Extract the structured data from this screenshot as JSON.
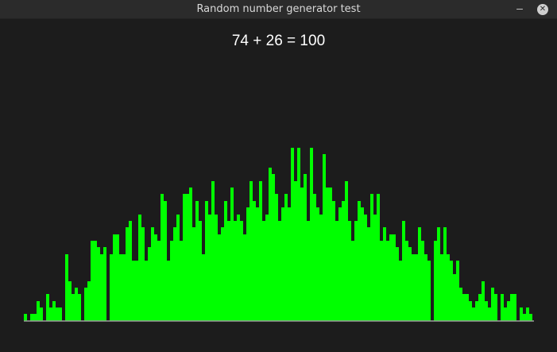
{
  "window": {
    "title": "Random number generator test",
    "minimize_glyph": "–",
    "close_glyph": "✕"
  },
  "equation": "74 + 26 = 100",
  "colors": {
    "bar": "#00ff00",
    "background": "#1c1c1c",
    "baseline": "#9a9a9a"
  },
  "chart_data": {
    "type": "bar",
    "title": "",
    "xlabel": "",
    "ylabel": "",
    "ylim": [
      0,
      250
    ],
    "values": [
      9,
      0,
      9,
      9,
      25,
      17,
      0,
      34,
      17,
      25,
      17,
      17,
      0,
      84,
      50,
      34,
      42,
      34,
      0,
      42,
      50,
      101,
      101,
      93,
      84,
      93,
      0,
      84,
      109,
      109,
      84,
      84,
      118,
      126,
      76,
      76,
      134,
      118,
      76,
      93,
      118,
      109,
      101,
      160,
      151,
      76,
      101,
      118,
      134,
      101,
      160,
      160,
      168,
      118,
      151,
      126,
      84,
      151,
      134,
      176,
      134,
      109,
      118,
      151,
      126,
      168,
      126,
      134,
      126,
      109,
      143,
      176,
      151,
      143,
      176,
      126,
      134,
      193,
      185,
      160,
      126,
      143,
      160,
      143,
      218,
      176,
      218,
      168,
      185,
      126,
      218,
      160,
      143,
      134,
      210,
      168,
      168,
      151,
      126,
      143,
      151,
      176,
      126,
      101,
      126,
      151,
      143,
      134,
      118,
      160,
      134,
      160,
      101,
      118,
      101,
      109,
      109,
      93,
      76,
      126,
      101,
      93,
      84,
      84,
      118,
      101,
      84,
      76,
      0,
      101,
      118,
      84,
      118,
      84,
      76,
      59,
      76,
      42,
      34,
      34,
      25,
      17,
      25,
      34,
      50,
      25,
      17,
      42,
      34,
      0,
      34,
      17,
      25,
      34,
      34,
      0,
      17,
      9,
      17,
      9
    ]
  }
}
